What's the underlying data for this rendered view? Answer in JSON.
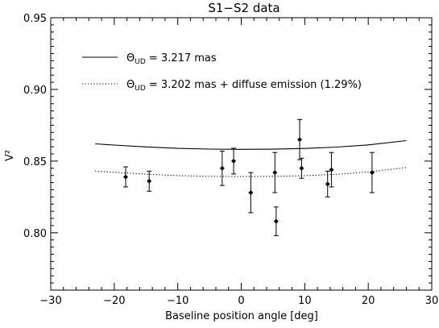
{
  "chart_data": {
    "type": "scatter",
    "title": "S1−S2 data",
    "xlabel": "Baseline position angle [deg]",
    "ylabel": "V²",
    "xlim": [
      -30,
      30
    ],
    "ylim": [
      0.76,
      0.95
    ],
    "x_ticks": [
      -30,
      -20,
      -10,
      0,
      10,
      20,
      30
    ],
    "x_tick_labels": [
      "−30",
      "−20",
      "−10",
      "0",
      "10",
      "20",
      "30"
    ],
    "y_ticks": [
      0.8,
      0.85,
      0.9,
      0.95
    ],
    "y_tick_labels": [
      "0.80",
      "0.85",
      "0.90",
      "0.95"
    ],
    "grid": false,
    "legend_position": "upper-left",
    "legend": [
      {
        "symbol": "Θ",
        "subscript": "UD",
        "text": " = 3.217 mas",
        "style": "solid"
      },
      {
        "symbol": "Θ",
        "subscript": "UD",
        "text": " = 3.202 mas + diffuse emission (1.29%)",
        "style": "dotted"
      }
    ],
    "series": [
      {
        "type": "line",
        "style": "solid",
        "x": [
          -23,
          -20,
          -15,
          -10,
          -5,
          0,
          5,
          10,
          15,
          20,
          26
        ],
        "y": [
          0.862,
          0.8612,
          0.8599,
          0.8589,
          0.8584,
          0.8582,
          0.8583,
          0.8588,
          0.8598,
          0.8613,
          0.8643
        ]
      },
      {
        "type": "line",
        "style": "dotted",
        "x": [
          -23,
          -20,
          -15,
          -10,
          -5,
          0,
          5,
          10,
          15,
          20,
          26
        ],
        "y": [
          0.843,
          0.8422,
          0.8409,
          0.8399,
          0.8394,
          0.8392,
          0.8393,
          0.8398,
          0.8408,
          0.8424,
          0.8455
        ]
      },
      {
        "type": "scatter",
        "marker": "diamond",
        "points": [
          {
            "x": -18.2,
            "y": 0.839,
            "yerr": 0.007
          },
          {
            "x": -14.5,
            "y": 0.836,
            "yerr": 0.007
          },
          {
            "x": -3.0,
            "y": 0.845,
            "yerr": 0.012
          },
          {
            "x": -1.2,
            "y": 0.85,
            "yerr": 0.009
          },
          {
            "x": 1.5,
            "y": 0.828,
            "yerr": 0.014
          },
          {
            "x": 5.3,
            "y": 0.842,
            "yerr": 0.014
          },
          {
            "x": 5.5,
            "y": 0.808,
            "yerr": 0.01
          },
          {
            "x": 9.2,
            "y": 0.865,
            "yerr": 0.014
          },
          {
            "x": 9.5,
            "y": 0.845,
            "yerr": 0.007
          },
          {
            "x": 13.6,
            "y": 0.834,
            "yerr": 0.009
          },
          {
            "x": 14.2,
            "y": 0.844,
            "yerr": 0.012
          },
          {
            "x": 20.6,
            "y": 0.842,
            "yerr": 0.014
          }
        ]
      }
    ]
  }
}
